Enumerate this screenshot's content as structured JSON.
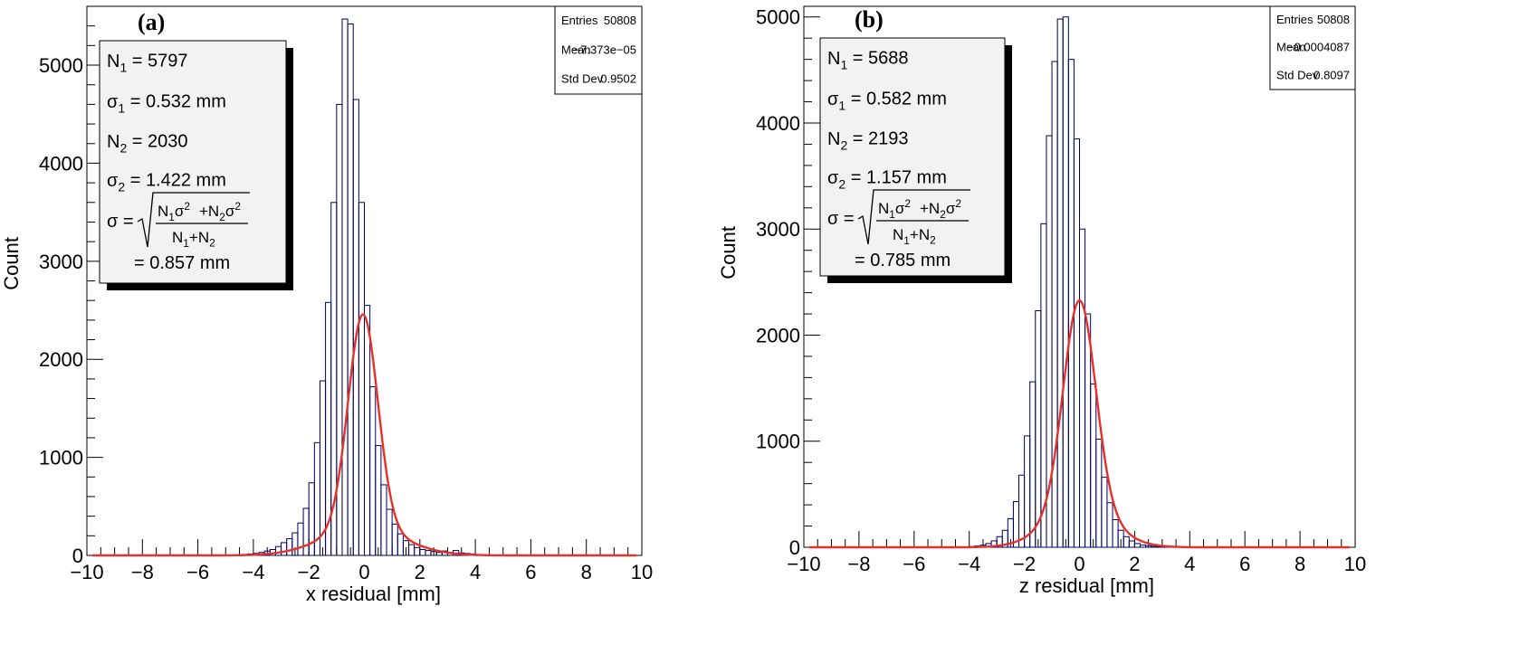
{
  "chart_data": [
    {
      "type": "histogram",
      "panel_label": "(a)",
      "xlabel": "x residual [mm]",
      "ylabel": "Count",
      "xlim": [
        -10,
        10
      ],
      "ylim": [
        0,
        5600
      ],
      "x_ticks": [
        -10,
        -8,
        -6,
        -4,
        -2,
        0,
        2,
        4,
        6,
        8,
        10
      ],
      "y_ticks": [
        0,
        1000,
        2000,
        3000,
        4000,
        5000
      ],
      "stats": {
        "entries_label": "Entries",
        "entries": "50808",
        "mean_label": "Mean",
        "mean": "−7.373e−05",
        "std_label": "Std Dev",
        "std": "0.9502"
      },
      "fit": {
        "n1": "5797",
        "sigma1": "0.532 mm",
        "n2": "2030",
        "sigma2": "1.422 mm",
        "sigma": "0.857 mm"
      },
      "series": [
        {
          "values": {
            "histogram": {
              "bin_width": 0.2,
              "x_start": -4.4,
              "counts": [
                10,
                15,
                20,
                30,
                45,
                60,
                90,
                130,
                170,
                230,
                330,
                480,
                740,
                1150,
                1780,
                2580,
                3600,
                4600,
                5470,
                5420,
                4650,
                3600,
                2550,
                1720,
                1120,
                720,
                470,
                320,
                220,
                150,
                110,
                80,
                60,
                50,
                40,
                30,
                45,
                30,
                50,
                25,
                20,
                15,
                10,
                8
              ]
            },
            "fit_curve": {
              "n1": 5797,
              "sigma1": 0.532,
              "n2": 2030,
              "sigma2": 1.422,
              "mean": -0.05
            }
          }
        }
      ]
    },
    {
      "type": "histogram",
      "panel_label": "(b)",
      "xlabel": "z residual [mm]",
      "ylabel": "Count",
      "xlim": [
        -10,
        10
      ],
      "ylim": [
        0,
        5100
      ],
      "x_ticks": [
        -10,
        -8,
        -6,
        -4,
        -2,
        0,
        2,
        4,
        6,
        8,
        10
      ],
      "y_ticks": [
        0,
        1000,
        2000,
        3000,
        4000,
        5000
      ],
      "stats": {
        "entries_label": "Entries",
        "entries": "50808",
        "mean_label": "Mean",
        "mean": "−0.0004087",
        "std_label": "Std Dev",
        "std": "0.8097"
      },
      "fit": {
        "n1": "5688",
        "sigma1": "0.582 mm",
        "n2": "2193",
        "sigma2": "1.157 mm",
        "sigma": "0.785 mm"
      },
      "series": [
        {
          "values": {
            "histogram": {
              "bin_width": 0.2,
              "x_start": -4.0,
              "counts": [
                8,
                12,
                20,
                35,
                60,
                100,
                160,
                270,
                430,
                680,
                1050,
                1560,
                2230,
                3050,
                3880,
                4580,
                4980,
                5000,
                4600,
                3850,
                3000,
                2200,
                1540,
                1020,
                660,
                420,
                260,
                160,
                100,
                60,
                35,
                20,
                15,
                10,
                8,
                5,
                4,
                3,
                2,
                1
              ]
            },
            "fit_curve": {
              "n1": 5688,
              "sigma1": 0.582,
              "n2": 2193,
              "sigma2": 1.157,
              "mean": 0.0
            }
          }
        }
      ]
    }
  ]
}
